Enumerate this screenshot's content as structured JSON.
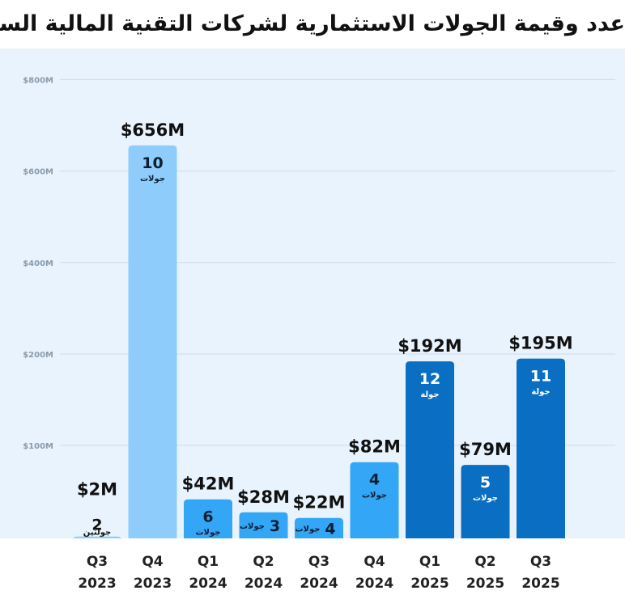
{
  "title": "عدد وقيمة الجولات الاستثمارية لشركات التقنية المالية السعودية",
  "chart_data": {
    "type": "bar",
    "title": "عدد وقيمة الجولات الاستثمارية لشركات التقنية المالية السعودية",
    "xlabel": "",
    "ylabel": "",
    "y_ticks": [
      {
        "value": 100,
        "label": "$100M"
      },
      {
        "value": 200,
        "label": "$200M"
      },
      {
        "value": 400,
        "label": "$400M"
      },
      {
        "value": 600,
        "label": "$600M"
      },
      {
        "value": 800,
        "label": "$800M"
      }
    ],
    "categories": [
      {
        "quarter": "Q3",
        "year": "2023"
      },
      {
        "quarter": "Q4",
        "year": "2023"
      },
      {
        "quarter": "Q1",
        "year": "2024"
      },
      {
        "quarter": "Q2",
        "year": "2024"
      },
      {
        "quarter": "Q3",
        "year": "2024"
      },
      {
        "quarter": "Q4",
        "year": "2024"
      },
      {
        "quarter": "Q1",
        "year": "2025"
      },
      {
        "quarter": "Q2",
        "year": "2025"
      },
      {
        "quarter": "Q3",
        "year": "2025"
      }
    ],
    "values": [
      2,
      656,
      42,
      28,
      22,
      82,
      192,
      79,
      195
    ],
    "value_labels": [
      "$2M",
      "$656M",
      "$42M",
      "$28M",
      "$22M",
      "$82M",
      "$192M",
      "$79M",
      "$195M"
    ],
    "round_counts": [
      "2",
      "10",
      "6",
      "3",
      "4",
      "4",
      "12",
      "5",
      "11"
    ],
    "round_words": [
      "جولتين",
      "جولات",
      "جولات",
      "جولات",
      "جولات",
      "جولات",
      "جولة",
      "جولات",
      "جولة"
    ],
    "bar_colors": [
      "#8ecdfb",
      "#8ecdfb",
      "#33a6f5",
      "#33a6f5",
      "#33a6f5",
      "#33a6f5",
      "#0a6fc2",
      "#0a6fc2",
      "#0a6fc2"
    ]
  },
  "colors": {
    "plot_background": "#e8f3fd",
    "gridline": "#c9dcea",
    "tick_label": "#8a9bab",
    "text_dark": "#111111",
    "text_on_bar_dark": "#0e1f33",
    "text_on_bar_light": "#ffffff"
  }
}
